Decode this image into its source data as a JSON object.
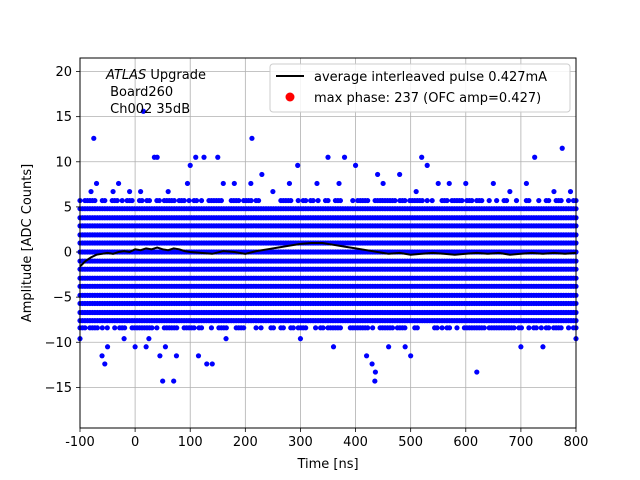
{
  "chart_data": {
    "type": "scatter",
    "xlabel": "Time [ns]",
    "ylabel": "Amplitude [ADC Counts]",
    "xlim": [
      -100,
      800
    ],
    "ylim": [
      -19.5,
      21.5
    ],
    "xticks": [
      "-100",
      "0",
      "100",
      "200",
      "300",
      "400",
      "500",
      "600",
      "700",
      "800"
    ],
    "yticks": [
      "−15",
      "−10",
      "−5",
      "0",
      "5",
      "10",
      "15",
      "20"
    ],
    "grid": true,
    "legend_position": "top-right",
    "annotation": {
      "line1_italic": "ATLAS",
      "line1_rest": " Upgrade",
      "line2": " Board260",
      "line3": " Ch002 35dB"
    },
    "series": [
      {
        "name": "average interleaved pulse 0.427mA",
        "kind": "line",
        "color": "#000000",
        "x": [
          -100,
          -90,
          -80,
          -70,
          -60,
          -50,
          -40,
          -30,
          -20,
          -10,
          0,
          10,
          20,
          30,
          40,
          50,
          60,
          70,
          80,
          90,
          100,
          120,
          140,
          160,
          180,
          200,
          220,
          240,
          260,
          280,
          300,
          320,
          340,
          360,
          380,
          400,
          420,
          440,
          460,
          480,
          500,
          520,
          540,
          560,
          580,
          600,
          620,
          640,
          660,
          680,
          700,
          720,
          740,
          760,
          780,
          800
        ],
        "y": [
          -1.6,
          -1.0,
          -0.6,
          -0.3,
          -0.2,
          -0.1,
          -0.2,
          0.0,
          0.1,
          0.0,
          0.3,
          0.2,
          0.4,
          0.3,
          0.5,
          0.3,
          0.2,
          0.4,
          0.3,
          0.1,
          0.0,
          -0.1,
          -0.2,
          0.1,
          0.0,
          -0.2,
          0.1,
          0.3,
          0.5,
          0.7,
          0.9,
          1.0,
          1.0,
          0.8,
          0.6,
          0.4,
          0.2,
          0.0,
          -0.2,
          -0.1,
          -0.3,
          -0.2,
          -0.1,
          -0.2,
          -0.3,
          -0.2,
          -0.1,
          -0.2,
          -0.1,
          -0.3,
          -0.2,
          -0.1,
          -0.2,
          -0.1,
          -0.2,
          -0.1
        ]
      },
      {
        "name": "max phase: 237 (OFC amp=0.427)",
        "kind": "scatter",
        "color": "#ff0000",
        "x": [],
        "y": []
      },
      {
        "name": "",
        "kind": "scatter",
        "color": "#0000ff",
        "levels": [
          -7.6,
          -6.7,
          -5.7,
          -4.8,
          -3.8,
          -2.9,
          -1.9,
          -1.0,
          0.0,
          1.0,
          1.9,
          2.9,
          3.8,
          4.8
        ],
        "sparse_levels": [
          5.7,
          -8.4
        ],
        "x_range": [
          -100,
          800
        ],
        "x_step": 4.5,
        "outliers": [
          [
            -100,
            -9.6
          ],
          [
            -80,
            6.7
          ],
          [
            -75,
            12.6
          ],
          [
            -70,
            7.6
          ],
          [
            -60,
            -11.5
          ],
          [
            -55,
            -12.4
          ],
          [
            -50,
            -10.5
          ],
          [
            -40,
            6.7
          ],
          [
            -30,
            7.6
          ],
          [
            -20,
            -9.6
          ],
          [
            -10,
            6.7
          ],
          [
            0,
            -10.5
          ],
          [
            10,
            6.7
          ],
          [
            15,
            15.6
          ],
          [
            20,
            -10.5
          ],
          [
            25,
            -9.6
          ],
          [
            35,
            10.5
          ],
          [
            40,
            10.5
          ],
          [
            45,
            -11.5
          ],
          [
            50,
            -14.3
          ],
          [
            55,
            -10.5
          ],
          [
            60,
            6.7
          ],
          [
            70,
            -14.3
          ],
          [
            75,
            -11.5
          ],
          [
            95,
            7.6
          ],
          [
            100,
            9.6
          ],
          [
            110,
            10.5
          ],
          [
            115,
            -11.5
          ],
          [
            125,
            10.5
          ],
          [
            130,
            -12.4
          ],
          [
            140,
            -12.4
          ],
          [
            150,
            10.5
          ],
          [
            160,
            7.6
          ],
          [
            165,
            -9.6
          ],
          [
            180,
            7.6
          ],
          [
            210,
            7.6
          ],
          [
            212,
            12.6
          ],
          [
            230,
            8.6
          ],
          [
            250,
            6.7
          ],
          [
            280,
            7.6
          ],
          [
            295,
            9.6
          ],
          [
            300,
            -9.6
          ],
          [
            330,
            7.6
          ],
          [
            350,
            10.5
          ],
          [
            360,
            -10.5
          ],
          [
            370,
            7.6
          ],
          [
            380,
            10.5
          ],
          [
            400,
            9.6
          ],
          [
            420,
            -11.5
          ],
          [
            430,
            -12.4
          ],
          [
            435,
            -14.3
          ],
          [
            436,
            -13.3
          ],
          [
            440,
            8.6
          ],
          [
            450,
            7.6
          ],
          [
            460,
            -10.5
          ],
          [
            480,
            8.6
          ],
          [
            490,
            -10.5
          ],
          [
            500,
            -11.5
          ],
          [
            510,
            6.7
          ],
          [
            520,
            10.5
          ],
          [
            530,
            9.6
          ],
          [
            550,
            7.6
          ],
          [
            570,
            7.6
          ],
          [
            600,
            7.6
          ],
          [
            620,
            -13.3
          ],
          [
            650,
            7.6
          ],
          [
            680,
            6.7
          ],
          [
            700,
            -10.5
          ],
          [
            710,
            7.6
          ],
          [
            725,
            10.5
          ],
          [
            740,
            -10.5
          ],
          [
            760,
            6.7
          ],
          [
            775,
            11.5
          ],
          [
            790,
            6.7
          ],
          [
            800,
            -9.6
          ]
        ]
      }
    ]
  }
}
